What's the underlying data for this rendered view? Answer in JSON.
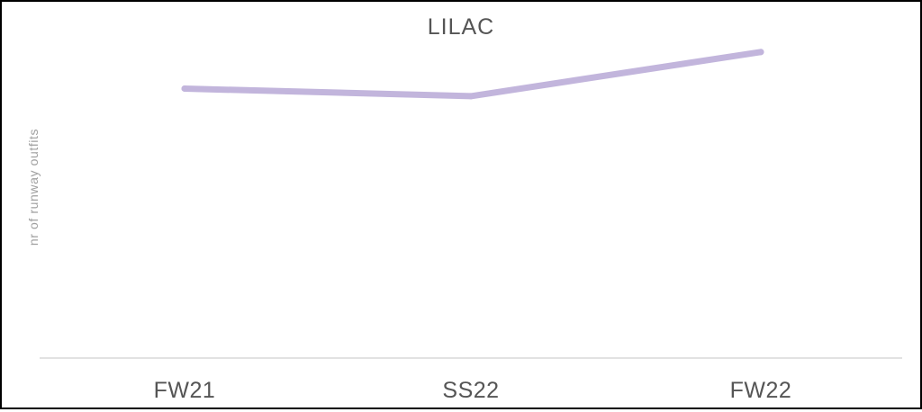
{
  "chart_data": {
    "type": "line",
    "title": "LILAC",
    "xlabel": "",
    "ylabel": "nr of runway outfits",
    "categories": [
      "FW21",
      "SS22",
      "FW22"
    ],
    "series": [
      {
        "values": [
          0.9,
          0.85,
          1.14
        ],
        "color": "#c2b5dc"
      }
    ],
    "ylim": [
      -0.87,
      1.47
    ],
    "grid": false,
    "legend": "none",
    "colors": {
      "title": "#555555",
      "ticks": "#555555",
      "ylabel": "#a0a0a0",
      "baseline": "#d9d9d9"
    }
  }
}
